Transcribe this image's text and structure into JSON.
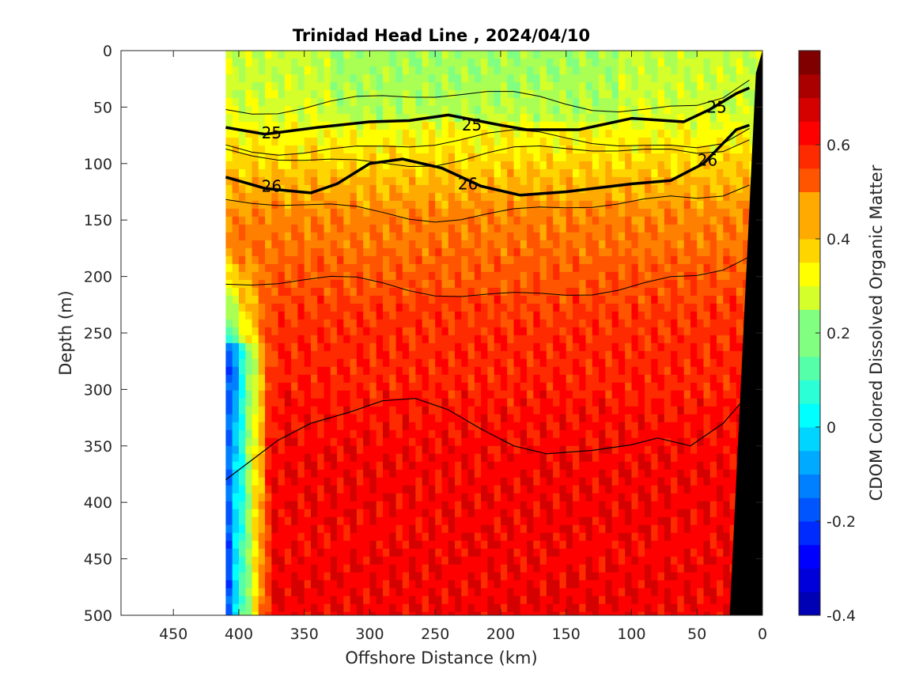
{
  "chart_data": {
    "type": "heatmap",
    "title": "Trinidad Head Line , 2024/04/10",
    "xlabel": "Offshore Distance (km)",
    "ylabel": "Depth (m)",
    "colorbar_label": "CDOM Colored Dissolved Organic Matter",
    "xlim": [
      490,
      0
    ],
    "ylim": [
      0,
      500
    ],
    "x_reversed": true,
    "y_reversed": true,
    "xticks": [
      450,
      400,
      350,
      300,
      250,
      200,
      150,
      100,
      50,
      0
    ],
    "yticks": [
      0,
      50,
      100,
      150,
      200,
      250,
      300,
      350,
      400,
      450,
      500
    ],
    "clim": [
      -0.4,
      0.8
    ],
    "colorbar_ticks": [
      -0.4,
      -0.2,
      0,
      0.2,
      0.4,
      0.6
    ],
    "colormap": "jet",
    "data_extent_x": [
      410,
      0
    ],
    "colormap_colors": [
      "#00008f",
      "#0000ff",
      "#0080ff",
      "#00ffff",
      "#80ff80",
      "#ffff00",
      "#ff8000",
      "#ff0000",
      "#800000"
    ],
    "cdom_profile": {
      "depths": [
        0,
        50,
        100,
        150,
        200,
        250,
        300,
        350,
        400,
        450,
        500
      ],
      "values": [
        0.28,
        0.3,
        0.4,
        0.5,
        0.55,
        0.6,
        0.62,
        0.65,
        0.66,
        0.66,
        0.67
      ]
    },
    "isopycnals": [
      {
        "level": "25",
        "bold": true,
        "points": [
          [
            410,
            68
          ],
          [
            380,
            74
          ],
          [
            340,
            68
          ],
          [
            300,
            63
          ],
          [
            270,
            62
          ],
          [
            240,
            57
          ],
          [
            200,
            66
          ],
          [
            180,
            70
          ],
          [
            140,
            70
          ],
          [
            100,
            60
          ],
          [
            60,
            63
          ],
          [
            40,
            52
          ],
          [
            20,
            38
          ],
          [
            10,
            33
          ]
        ]
      },
      {
        "level": "26",
        "bold": true,
        "points": [
          [
            410,
            112
          ],
          [
            380,
            122
          ],
          [
            345,
            126
          ],
          [
            325,
            118
          ],
          [
            300,
            100
          ],
          [
            275,
            96
          ],
          [
            245,
            104
          ],
          [
            215,
            120
          ],
          [
            185,
            128
          ],
          [
            150,
            125
          ],
          [
            100,
            118
          ],
          [
            70,
            115
          ],
          [
            45,
            100
          ],
          [
            20,
            70
          ],
          [
            10,
            66
          ]
        ]
      },
      {
        "level": "",
        "bold": false,
        "points": [
          [
            410,
            380
          ],
          [
            370,
            345
          ],
          [
            345,
            330
          ],
          [
            315,
            320
          ],
          [
            290,
            310
          ],
          [
            265,
            308
          ],
          [
            240,
            318
          ],
          [
            215,
            335
          ],
          [
            190,
            350
          ],
          [
            165,
            357
          ],
          [
            130,
            354
          ],
          [
            100,
            349
          ],
          [
            80,
            343
          ],
          [
            55,
            350
          ],
          [
            30,
            330
          ],
          [
            15,
            310
          ]
        ]
      }
    ],
    "colorbar_ticklabels": [
      "-0.4",
      "-0.2",
      "0",
      "0.2",
      "0.4",
      "0.6"
    ],
    "contour_labels": [
      {
        "text": "25",
        "x": 375,
        "y": 73
      },
      {
        "text": "25",
        "x": 222,
        "y": 66
      },
      {
        "text": "25",
        "x": 35,
        "y": 50
      },
      {
        "text": "26",
        "x": 375,
        "y": 120
      },
      {
        "text": "26",
        "x": 225,
        "y": 118
      },
      {
        "text": "26",
        "x": 42,
        "y": 97
      }
    ]
  }
}
